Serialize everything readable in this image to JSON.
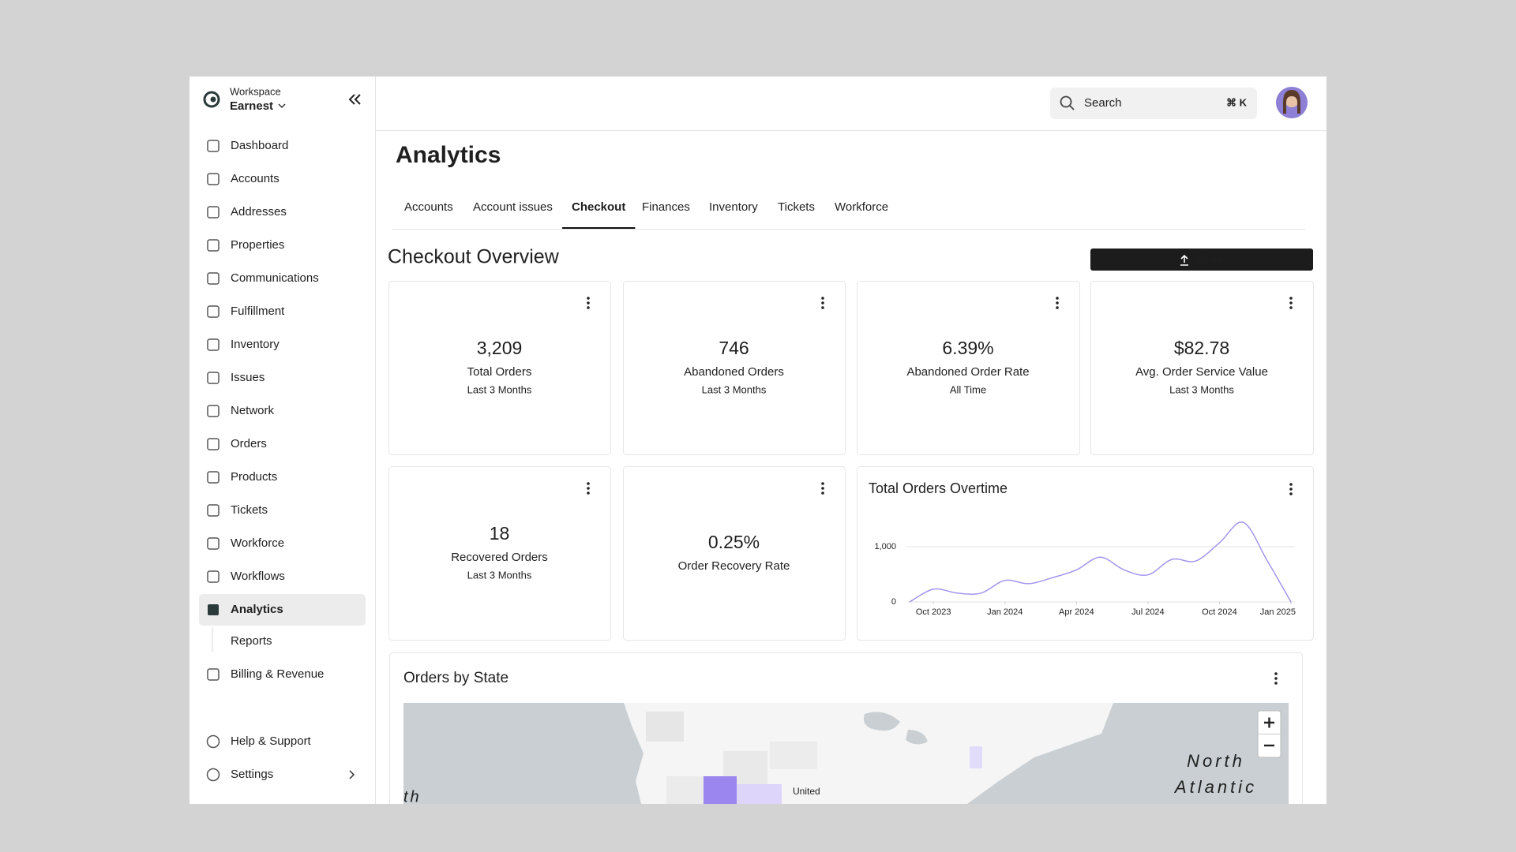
{
  "workspace": {
    "label": "Workspace",
    "name": "Earnest"
  },
  "nav": [
    "Dashboard",
    "Accounts",
    "Addresses",
    "Properties",
    "Communications",
    "Fulfillment",
    "Inventory",
    "Issues",
    "Network",
    "Orders",
    "Products",
    "Tickets",
    "Workforce",
    "Workflows",
    "Analytics"
  ],
  "subnav": [
    "Reports"
  ],
  "nav_extra": [
    "Billing & Revenue"
  ],
  "footer_nav": [
    "Help & Support",
    "Settings"
  ],
  "search": {
    "placeholder": "Search",
    "shortcut": "⌘ K"
  },
  "page_title": "Analytics",
  "tabs": [
    "Accounts",
    "Account issues",
    "Checkout",
    "Finances",
    "Inventory",
    "Tickets",
    "Workforce"
  ],
  "active_tab": 2,
  "section_title": "Checkout Overview",
  "share": "Share",
  "metrics": [
    {
      "value": "3,209",
      "label": "Total Orders",
      "period": "Last 3 Months"
    },
    {
      "value": "746",
      "label": "Abandoned Orders",
      "period": "Last 3 Months"
    },
    {
      "value": "6.39%",
      "label": "Abandoned Order Rate",
      "period": "All Time"
    },
    {
      "value": "$82.78",
      "label": "Avg. Order Service Value",
      "period": "Last 3 Months"
    },
    {
      "value": "18",
      "label": "Recovered Orders",
      "period": "Last 3 Months"
    },
    {
      "value": "0.25%",
      "label": "Order Recovery Rate"
    }
  ],
  "orders_chart": {
    "type": "line",
    "title": "Total Orders Overtime",
    "x": [
      "2023-09",
      "2023-10",
      "2023-11",
      "2023-12",
      "2024-01",
      "2024-02",
      "2024-03",
      "2024-04",
      "2024-05",
      "2024-06",
      "2024-07",
      "2024-08",
      "2024-09",
      "2024-10",
      "2024-11",
      "2024-12",
      "2025-01"
    ],
    "values": [
      0,
      230,
      160,
      160,
      390,
      330,
      440,
      580,
      810,
      580,
      490,
      770,
      740,
      1070,
      1440,
      750,
      0
    ],
    "color": "#a395ee",
    "xlim": [
      "2023-09",
      "2025-01"
    ],
    "xticks": [
      {
        "value": "2023-10",
        "label": "Oct 2023"
      },
      {
        "value": "2024-01",
        "label": "Jan 2024"
      },
      {
        "value": "2024-04",
        "label": "Apr 2024"
      },
      {
        "value": "2024-07",
        "label": "Jul 2024"
      },
      {
        "value": "2024-10",
        "label": "Oct 2024"
      },
      {
        "value": "2025-01",
        "label": "Jan 2025"
      }
    ],
    "ylim": [
      0,
      1500
    ],
    "yticks": [
      0,
      {
        "value": 1000,
        "label": "1,000"
      }
    ],
    "grid": true
  },
  "map": {
    "title": "Orders by State",
    "labels": [
      "North",
      "Atlantic",
      "th",
      "United"
    ]
  }
}
